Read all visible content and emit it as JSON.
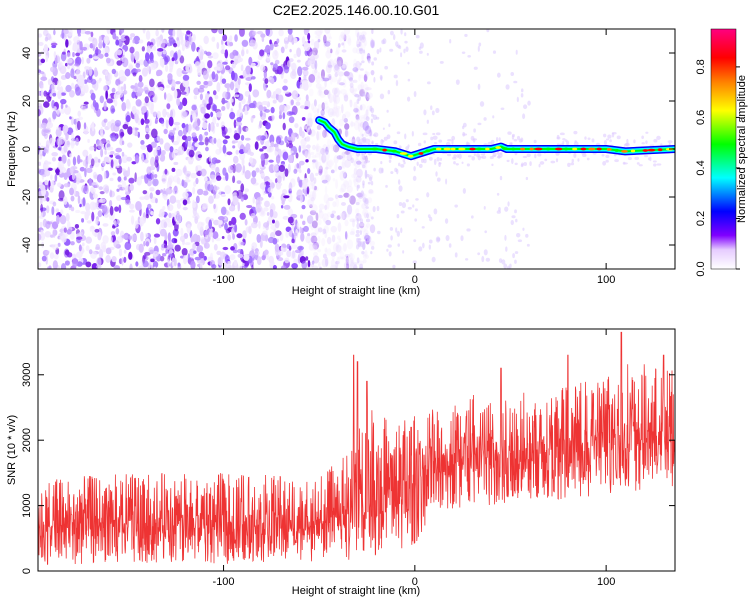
{
  "title": "C2E2.2025.146.00.10.G01",
  "chart_data": [
    {
      "type": "heatmap",
      "title": "C2E2.2025.146.00.10.G01",
      "xlabel": "Height of straight line (km)",
      "ylabel": "Frequency (Hz)",
      "xlim": [
        -197,
        136
      ],
      "ylim": [
        -50,
        50
      ],
      "x_ticks": [
        -100,
        0,
        100
      ],
      "y_ticks": [
        -40,
        -20,
        0,
        20,
        40
      ],
      "grid": false,
      "colorbar": {
        "label": "Normalized spectral amplitude",
        "range": [
          0,
          0.95
        ],
        "ticks": [
          0.0,
          0.2,
          0.4,
          0.6,
          0.8
        ],
        "colors": [
          "#ffffff",
          "#8000ff",
          "#0000ff",
          "#00ffff",
          "#00ff00",
          "#ffff00",
          "#ff8000",
          "#ff0000",
          "#ff0080"
        ]
      },
      "features": {
        "noise_region_x": [
          -197,
          -30
        ],
        "noise_region_y": [
          -50,
          50
        ],
        "signal_line": [
          [
            -50,
            12
          ],
          [
            -47,
            11
          ],
          [
            -45,
            9
          ],
          [
            -42,
            7
          ],
          [
            -40,
            4
          ],
          [
            -38,
            2
          ],
          [
            -35,
            1
          ],
          [
            -30,
            0
          ],
          [
            -20,
            0
          ],
          [
            -10,
            -1
          ],
          [
            -2,
            -3
          ],
          [
            2,
            -2
          ],
          [
            10,
            0
          ],
          [
            40,
            0
          ],
          [
            45,
            1
          ],
          [
            48,
            0
          ],
          [
            100,
            0
          ],
          [
            110,
            -1
          ],
          [
            136,
            0
          ]
        ],
        "signal_peak_amplitude": 0.85
      }
    },
    {
      "type": "line",
      "xlabel": "Height of straight line (km)",
      "ylabel": "SNR (10 * v/v)",
      "xlim": [
        -197,
        136
      ],
      "ylim": [
        0,
        3700
      ],
      "x_ticks": [
        -100,
        0,
        100
      ],
      "y_ticks": [
        0,
        1000,
        2000,
        3000
      ],
      "grid": false,
      "series": [
        {
          "color": "#ee3333",
          "envelope": [
            {
              "x": -197,
              "low": 100,
              "high": 1400
            },
            {
              "x": -150,
              "low": 100,
              "high": 1500
            },
            {
              "x": -100,
              "low": 100,
              "high": 1500
            },
            {
              "x": -50,
              "low": 150,
              "high": 1450
            },
            {
              "x": -35,
              "low": 150,
              "high": 1800
            },
            {
              "x": -25,
              "low": 200,
              "high": 2500
            },
            {
              "x": -10,
              "low": 300,
              "high": 2300
            },
            {
              "x": 0,
              "low": 400,
              "high": 2400
            },
            {
              "x": 10,
              "low": 900,
              "high": 2500
            },
            {
              "x": 30,
              "low": 1000,
              "high": 2700
            },
            {
              "x": 50,
              "low": 1000,
              "high": 2700
            },
            {
              "x": 70,
              "low": 1100,
              "high": 2800
            },
            {
              "x": 90,
              "low": 1100,
              "high": 2900
            },
            {
              "x": 110,
              "low": 1200,
              "high": 3200
            },
            {
              "x": 136,
              "low": 1300,
              "high": 3100
            }
          ],
          "peaks": [
            {
              "x": -32,
              "y": 3300
            },
            {
              "x": -30,
              "y": 3200
            },
            {
              "x": -25,
              "y": 2900
            },
            {
              "x": 45,
              "y": 3100
            },
            {
              "x": 80,
              "y": 3300
            },
            {
              "x": 108,
              "y": 3650
            },
            {
              "x": 130,
              "y": 3300
            }
          ]
        }
      ]
    }
  ]
}
